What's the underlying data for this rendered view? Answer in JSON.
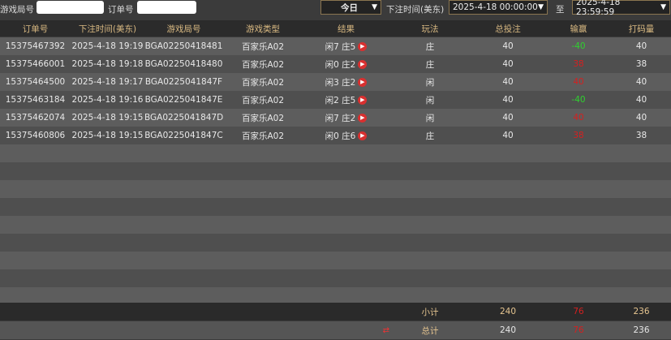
{
  "filters": {
    "game_round_label": "游戏局号",
    "game_round_value": "",
    "order_label": "订单号",
    "order_value": "",
    "period": "今日",
    "time_label": "下注时间(美东)",
    "start": "2025-4-18 00:00:00",
    "to_label": "至",
    "end": "2025-4-18 23:59:59"
  },
  "columns": [
    "订单号",
    "下注时间(美东)",
    "游戏局号",
    "游戏类型",
    "结果",
    "玩法",
    "总投注",
    "输赢",
    "打码量"
  ],
  "rows": [
    {
      "order": "15375467392",
      "time": "2025-4-18 19:19",
      "round": "BGA02250418481",
      "type": "百家乐A02",
      "result": "闲7 庄5",
      "bet": "庄",
      "total": "40",
      "winloss": "-40",
      "outcome": "win",
      "turnover": "40"
    },
    {
      "order": "15375466001",
      "time": "2025-4-18 19:18",
      "round": "BGA02250418480",
      "type": "百家乐A02",
      "result": "闲0 庄2",
      "bet": "庄",
      "total": "40",
      "winloss": "38",
      "outcome": "lose",
      "turnover": "38"
    },
    {
      "order": "15375464500",
      "time": "2025-4-18 19:17",
      "round": "BGA0225041847F",
      "type": "百家乐A02",
      "result": "闲3 庄2",
      "bet": "闲",
      "total": "40",
      "winloss": "40",
      "outcome": "lose",
      "turnover": "40"
    },
    {
      "order": "15375463184",
      "time": "2025-4-18 19:16",
      "round": "BGA0225041847E",
      "type": "百家乐A02",
      "result": "闲2 庄5",
      "bet": "闲",
      "total": "40",
      "winloss": "-40",
      "outcome": "win",
      "turnover": "40"
    },
    {
      "order": "15375462074",
      "time": "2025-4-18 19:15",
      "round": "BGA0225041847D",
      "type": "百家乐A02",
      "result": "闲7 庄2",
      "bet": "闲",
      "total": "40",
      "winloss": "40",
      "outcome": "lose",
      "turnover": "40"
    },
    {
      "order": "15375460806",
      "time": "2025-4-18 19:15",
      "round": "BGA0225041847C",
      "type": "百家乐A02",
      "result": "闲0 庄6",
      "bet": "庄",
      "total": "40",
      "winloss": "38",
      "outcome": "lose",
      "turnover": "38"
    }
  ],
  "subtotal": {
    "label": "小计",
    "total": "240",
    "winloss": "76",
    "turnover": "236"
  },
  "grand_total": {
    "label": "总计",
    "total": "240",
    "winloss": "76",
    "turnover": "236"
  },
  "colors": {
    "header_text": "#d9b982",
    "win": "#2fd12f",
    "lose": "#d42020",
    "play_icon": "#d93030"
  }
}
